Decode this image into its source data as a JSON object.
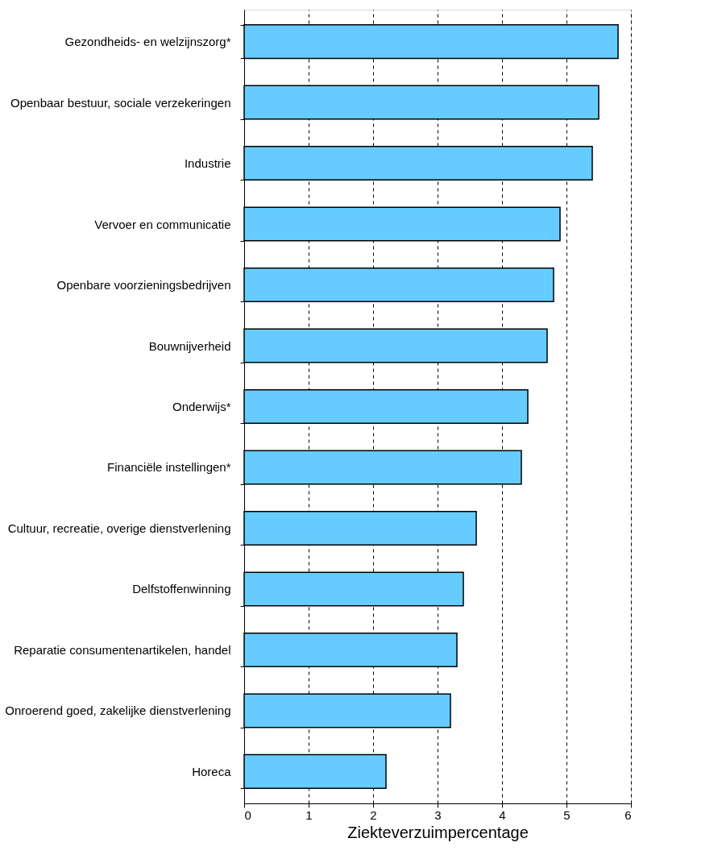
{
  "chart_data": {
    "type": "bar",
    "orientation": "horizontal",
    "xlabel": "Ziekteverzuimpercentage",
    "categories": [
      "Gezondheids- en welzijnszorg*",
      "Openbaar bestuur, sociale verzekeringen",
      "Industrie",
      "Vervoer en communicatie",
      "Openbare voorzieningsbedrijven",
      "Bouwnijverheid",
      "Onderwijs*",
      "Financiële instellingen*",
      "Cultuur, recreatie, overige dienstverlening",
      "Delfstoffenwinning",
      "Reparatie consumentenartikelen, handel",
      "Onroerend goed, zakelijke dienstverlening",
      "Horeca"
    ],
    "values": [
      5.8,
      5.5,
      5.4,
      4.9,
      4.8,
      4.7,
      4.4,
      4.3,
      3.6,
      3.4,
      3.3,
      3.2,
      2.2
    ],
    "color": "#66ccff",
    "xlim": [
      0,
      6
    ],
    "xticks": [
      0,
      1,
      2,
      3,
      4,
      5,
      6
    ],
    "grid": "x"
  }
}
